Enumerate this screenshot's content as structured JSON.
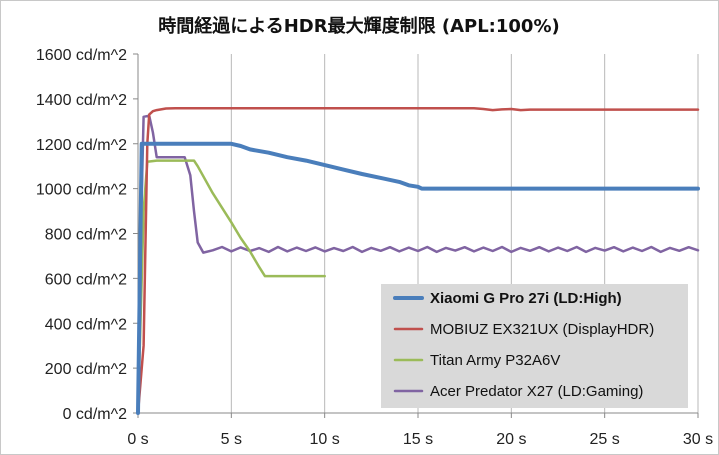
{
  "chart_data": {
    "type": "line",
    "title": "時間経過によるHDR最大輝度制限 (APL:100%)",
    "xlabel": "",
    "ylabel": "",
    "xlim": [
      0,
      30
    ],
    "ylim": [
      0,
      1600
    ],
    "x_ticks": [
      0,
      5,
      10,
      15,
      20,
      25,
      30
    ],
    "x_tick_labels": [
      "0 s",
      "5 s",
      "10 s",
      "15 s",
      "20 s",
      "25 s",
      "30 s"
    ],
    "y_ticks": [
      0,
      200,
      400,
      600,
      800,
      1000,
      1200,
      1400,
      1600
    ],
    "y_tick_labels": [
      "0 cd/m^2",
      "200 cd/m^2",
      "400 cd/m^2",
      "600 cd/m^2",
      "800 cd/m^2",
      "1000 cd/m^2",
      "1200 cd/m^2",
      "1400 cd/m^2",
      "1600 cd/m^2"
    ],
    "grid": {
      "vertical": true,
      "horizontal": false
    },
    "legend_position": "bottom-right",
    "series": [
      {
        "name": "Xiaomi G Pro 27i (LD:High)",
        "color": "#4a7ebb",
        "bold": true,
        "x": [
          0,
          0.2,
          0.3,
          1,
          2,
          3,
          4,
          5,
          5.5,
          6,
          7,
          8,
          9,
          10,
          11,
          12,
          13,
          14,
          14.5,
          15,
          15.2,
          16,
          18,
          20,
          22,
          24,
          26,
          28,
          30
        ],
        "y": [
          0,
          1200,
          1200,
          1200,
          1200,
          1200,
          1200,
          1200,
          1190,
          1175,
          1160,
          1140,
          1125,
          1105,
          1085,
          1065,
          1048,
          1030,
          1015,
          1008,
          1000,
          1000,
          1000,
          1000,
          1000,
          1000,
          1000,
          1000,
          1000
        ]
      },
      {
        "name": "MOBIUZ EX321UX (DisplayHDR)",
        "color": "#c0504d",
        "bold": false,
        "x": [
          0,
          0.3,
          0.5,
          0.6,
          0.8,
          1,
          1.5,
          2,
          5,
          10,
          15,
          18,
          18.5,
          19,
          19.5,
          20,
          20.5,
          21,
          25,
          30
        ],
        "y": [
          0,
          300,
          1200,
          1330,
          1345,
          1350,
          1357,
          1358,
          1358,
          1358,
          1358,
          1358,
          1355,
          1350,
          1353,
          1355,
          1350,
          1352,
          1352,
          1352
        ]
      },
      {
        "name": "Titan Army P32A6V",
        "color": "#9bbb59",
        "bold": false,
        "x": [
          0,
          0.3,
          0.5,
          1,
          2,
          3,
          3.2,
          4,
          5,
          5.5,
          6,
          6.5,
          6.8,
          7,
          8,
          9,
          10
        ],
        "y": [
          0,
          900,
          1120,
          1125,
          1125,
          1125,
          1100,
          980,
          850,
          780,
          720,
          650,
          610,
          610,
          610,
          610,
          610
        ]
      },
      {
        "name": "Acer Predator X27 (LD:Gaming)",
        "color": "#8064a2",
        "bold": false,
        "x": [
          0,
          0.15,
          0.3,
          0.6,
          0.8,
          1,
          2,
          2.5,
          2.8,
          3,
          3.2,
          3.5,
          4,
          4.5,
          5,
          5.5,
          6,
          6.5,
          7,
          7.5,
          8,
          8.5,
          9,
          9.5,
          10,
          10.5,
          11,
          11.5,
          12,
          12.5,
          13,
          13.5,
          14,
          14.5,
          15,
          15.5,
          16,
          16.5,
          17,
          17.5,
          18,
          18.5,
          19,
          19.5,
          20,
          20.5,
          21,
          21.5,
          22,
          22.5,
          23,
          23.5,
          24,
          24.5,
          25,
          25.5,
          26,
          26.5,
          27,
          27.5,
          28,
          28.5,
          29,
          29.5,
          30
        ],
        "y": [
          0,
          800,
          1320,
          1325,
          1250,
          1140,
          1140,
          1140,
          1060,
          900,
          760,
          715,
          725,
          740,
          720,
          738,
          722,
          735,
          718,
          740,
          720,
          737,
          722,
          738,
          720,
          735,
          722,
          740,
          718,
          736,
          723,
          739,
          720,
          737,
          722,
          740,
          718,
          736,
          724,
          739,
          720,
          737,
          722,
          740,
          718,
          736,
          723,
          739,
          720,
          737,
          722,
          740,
          718,
          736,
          724,
          739,
          720,
          737,
          722,
          740,
          718,
          736,
          723,
          739,
          725
        ]
      }
    ]
  }
}
